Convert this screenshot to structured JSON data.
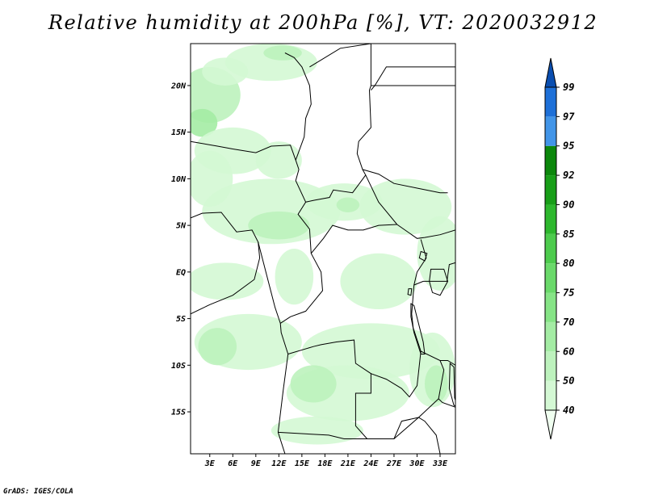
{
  "title": "Relative humidity at 200hPa [%], VT: 2020032912",
  "credit": "GrADS: IGES/COLA",
  "map": {
    "lat_range": [
      -19.5,
      24.5
    ],
    "lon_range": [
      0.5,
      35.0
    ],
    "lat_ticks": [
      {
        "value": 20,
        "label": "20N"
      },
      {
        "value": 15,
        "label": "15N"
      },
      {
        "value": 10,
        "label": "10N"
      },
      {
        "value": 5,
        "label": "5N"
      },
      {
        "value": 0,
        "label": "EQ"
      },
      {
        "value": -5,
        "label": "5S"
      },
      {
        "value": -10,
        "label": "10S"
      },
      {
        "value": -15,
        "label": "15S"
      }
    ],
    "lon_ticks": [
      {
        "value": 3,
        "label": "3E"
      },
      {
        "value": 6,
        "label": "6E"
      },
      {
        "value": 9,
        "label": "9E"
      },
      {
        "value": 12,
        "label": "12E"
      },
      {
        "value": 15,
        "label": "15E"
      },
      {
        "value": 18,
        "label": "18E"
      },
      {
        "value": 21,
        "label": "21E"
      },
      {
        "value": 24,
        "label": "24E"
      },
      {
        "value": 27,
        "label": "27E"
      },
      {
        "value": 30,
        "label": "30E"
      },
      {
        "value": 33,
        "label": "33E"
      }
    ]
  },
  "colorbar": {
    "levels": [
      "40",
      "50",
      "60",
      "70",
      "75",
      "80",
      "85",
      "90",
      "92",
      "95",
      "97",
      "99"
    ],
    "colors": [
      "#f0fff0",
      "#d4f8d4",
      "#bdf2bd",
      "#a4eca4",
      "#86e486",
      "#6ad96a",
      "#4dcb4d",
      "#2db72d",
      "#189e18",
      "#0c870c",
      "#4295e8",
      "#1e70d8",
      "#0a4eb0"
    ]
  },
  "chart_data": {
    "type": "heatmap",
    "variable": "Relative humidity at 200hPa",
    "units": "%",
    "valid_time": "2020032912",
    "contour_levels": [
      40,
      50,
      60,
      70,
      75,
      80,
      85,
      90,
      92,
      95,
      97,
      99
    ],
    "regions": [
      {
        "lon": 3.0,
        "lat": 19.0,
        "rx": 4.0,
        "ry": 3.0,
        "level": 1
      },
      {
        "lon": 5.0,
        "lat": 21.5,
        "rx": 3.0,
        "ry": 1.5,
        "level": 0
      },
      {
        "lon": 11.0,
        "lat": 22.5,
        "rx": 6.0,
        "ry": 2.0,
        "level": 0
      },
      {
        "lon": 12.5,
        "lat": 23.5,
        "rx": 2.5,
        "ry": 0.8,
        "level": 1
      },
      {
        "lon": 2.0,
        "lat": 16.0,
        "rx": 2.0,
        "ry": 1.5,
        "level": 2
      },
      {
        "lon": 6.0,
        "lat": 13.0,
        "rx": 5.0,
        "ry": 2.5,
        "level": 0
      },
      {
        "lon": 12.0,
        "lat": 12.0,
        "rx": 3.0,
        "ry": 2.0,
        "level": 0
      },
      {
        "lon": 3.0,
        "lat": 10.0,
        "rx": 3.0,
        "ry": 3.0,
        "level": 0
      },
      {
        "lon": 11.0,
        "lat": 6.5,
        "rx": 9.0,
        "ry": 3.5,
        "level": 0
      },
      {
        "lon": 12.0,
        "lat": 5.0,
        "rx": 4.0,
        "ry": 1.5,
        "level": 1
      },
      {
        "lon": 20.5,
        "lat": 7.5,
        "rx": 5.0,
        "ry": 2.0,
        "level": 0
      },
      {
        "lon": 21.0,
        "lat": 7.2,
        "rx": 1.5,
        "ry": 0.8,
        "level": 1
      },
      {
        "lon": 28.5,
        "lat": 7.0,
        "rx": 6.0,
        "ry": 3.0,
        "level": 0
      },
      {
        "lon": 33.0,
        "lat": 2.0,
        "rx": 3.0,
        "ry": 4.0,
        "level": 0
      },
      {
        "lon": 5.0,
        "lat": -1.0,
        "rx": 5.0,
        "ry": 2.0,
        "level": 0
      },
      {
        "lon": 14.0,
        "lat": -0.5,
        "rx": 2.5,
        "ry": 3.0,
        "level": 0
      },
      {
        "lon": 25.0,
        "lat": -1.0,
        "rx": 5.0,
        "ry": 3.0,
        "level": 0
      },
      {
        "lon": 8.0,
        "lat": -7.5,
        "rx": 7.0,
        "ry": 3.0,
        "level": 0
      },
      {
        "lon": 4.0,
        "lat": -8.0,
        "rx": 2.5,
        "ry": 2.0,
        "level": 1
      },
      {
        "lon": 24.0,
        "lat": -8.5,
        "rx": 9.0,
        "ry": 3.0,
        "level": 0
      },
      {
        "lon": 21.0,
        "lat": -13.0,
        "rx": 8.0,
        "ry": 3.0,
        "level": 0
      },
      {
        "lon": 16.5,
        "lat": -12.0,
        "rx": 3.0,
        "ry": 2.0,
        "level": 1
      },
      {
        "lon": 17.0,
        "lat": -17.0,
        "rx": 6.0,
        "ry": 1.5,
        "level": 0
      },
      {
        "lon": 32.0,
        "lat": -10.5,
        "rx": 3.0,
        "ry": 4.0,
        "level": 0
      },
      {
        "lon": 32.5,
        "lat": -12.0,
        "rx": 1.5,
        "ry": 2.0,
        "level": 1
      }
    ]
  }
}
